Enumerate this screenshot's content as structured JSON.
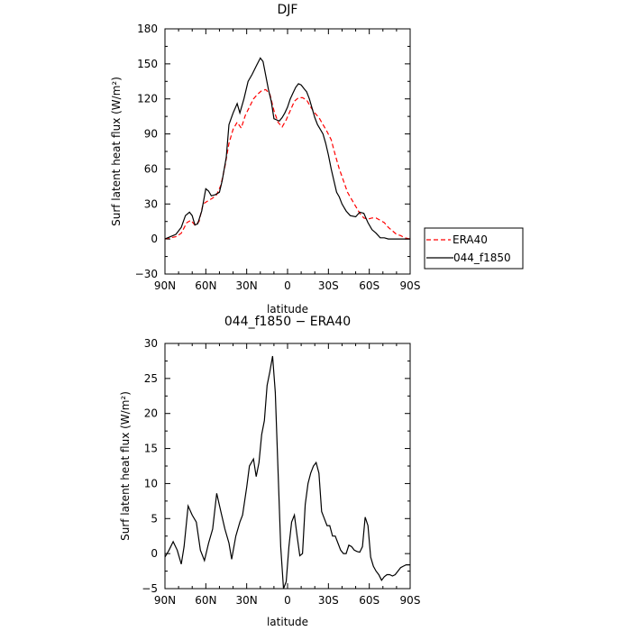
{
  "chart_data": [
    {
      "type": "line",
      "title": "DJF",
      "xlabel": "latitude",
      "ylabel": "Surf latent heat flux (W/m²)",
      "xlim": [
        90,
        -90
      ],
      "ylim": [
        -30,
        180
      ],
      "xticks": [
        90,
        60,
        30,
        0,
        -30,
        -60,
        -90
      ],
      "xtick_labels": [
        "90N",
        "60N",
        "30N",
        "0",
        "30S",
        "60S",
        "90S"
      ],
      "yticks": [
        -30,
        0,
        30,
        60,
        90,
        120,
        150,
        180
      ],
      "ytick_labels": [
        "−30",
        "0",
        "30",
        "60",
        "90",
        "120",
        "150",
        "180"
      ],
      "legend": {
        "placement": "right",
        "entries": [
          "ERA40",
          "044_f1850"
        ]
      },
      "series": [
        {
          "name": "ERA40",
          "color": "#ff0000",
          "dash": "dashed",
          "x": [
            90,
            86,
            82,
            78,
            74,
            71,
            68,
            65,
            62,
            58,
            55,
            52,
            49,
            46,
            43,
            40,
            37,
            34,
            31,
            28,
            25,
            22,
            19,
            16,
            13,
            10,
            7,
            4,
            1,
            -2,
            -5,
            -8,
            -11,
            -14,
            -17,
            -20,
            -23,
            -26,
            -29,
            -32,
            -35,
            -38,
            -41,
            -44,
            -47,
            -50,
            -53,
            -56,
            -59,
            -62,
            -65,
            -68,
            -71,
            -74,
            -77,
            -80,
            -83,
            -86,
            -90
          ],
          "y": [
            0,
            1,
            2,
            5,
            14,
            16,
            12,
            15,
            30,
            33,
            35,
            38,
            46,
            62,
            82,
            94,
            100,
            95,
            106,
            113,
            120,
            124,
            127,
            128,
            124,
            110,
            100,
            96,
            102,
            110,
            118,
            121,
            121,
            119,
            113,
            108,
            104,
            98,
            92,
            85,
            72,
            60,
            50,
            40,
            34,
            28,
            22,
            18,
            17,
            18,
            18,
            16,
            14,
            10,
            7,
            4,
            3,
            1,
            0
          ]
        },
        {
          "name": "044_f1850",
          "color": "#000000",
          "dash": "solid",
          "x": [
            90,
            86,
            82,
            78,
            75,
            72,
            70,
            68,
            66,
            63,
            60,
            58,
            56,
            53,
            50,
            48,
            45,
            43,
            40,
            37,
            35,
            32,
            29,
            26,
            23,
            20,
            18,
            16,
            14,
            12,
            10,
            8,
            6,
            4,
            2,
            0,
            -2,
            -4,
            -6,
            -8,
            -10,
            -12,
            -14,
            -16,
            -18,
            -20,
            -22,
            -24,
            -26,
            -28,
            -30,
            -32,
            -34,
            -36,
            -38,
            -40,
            -43,
            -46,
            -50,
            -53,
            -56,
            -59,
            -62,
            -65,
            -68,
            -71,
            -74,
            -77,
            -80,
            -83,
            -86,
            -90
          ],
          "y": [
            0,
            2,
            4,
            10,
            20,
            23,
            20,
            12,
            13,
            24,
            43,
            41,
            37,
            38,
            40,
            50,
            70,
            98,
            108,
            116,
            108,
            120,
            135,
            141,
            148,
            155,
            152,
            140,
            128,
            118,
            103,
            102,
            101,
            104,
            108,
            113,
            120,
            125,
            130,
            133,
            132,
            129,
            126,
            120,
            112,
            104,
            98,
            94,
            90,
            82,
            72,
            60,
            50,
            40,
            36,
            30,
            24,
            20,
            19,
            23,
            22,
            14,
            8,
            5,
            1,
            1,
            0,
            0,
            0,
            0,
            0,
            0
          ]
        }
      ]
    },
    {
      "type": "line",
      "title": "044_f1850 − ERA40",
      "xlabel": "latitude",
      "ylabel": "Surf latent heat flux (W/m²)",
      "xlim": [
        90,
        -90
      ],
      "ylim": [
        -5,
        30
      ],
      "xticks": [
        90,
        60,
        30,
        0,
        -30,
        -60,
        -90
      ],
      "xtick_labels": [
        "90N",
        "60N",
        "30N",
        "0",
        "30S",
        "60S",
        "90S"
      ],
      "yticks": [
        -5,
        0,
        5,
        10,
        15,
        20,
        25,
        30
      ],
      "ytick_labels": [
        "−5",
        "0",
        "5",
        "10",
        "15",
        "20",
        "25",
        "30"
      ],
      "series": [
        {
          "color": "#000000",
          "dash": "solid",
          "x": [
            90,
            87,
            84,
            81,
            78,
            76,
            73,
            70,
            67,
            64,
            61,
            58,
            55,
            52,
            49,
            46,
            43,
            41,
            38,
            35,
            33,
            30,
            28,
            25,
            23,
            21,
            19,
            17,
            15,
            13,
            11,
            9,
            7,
            5,
            3,
            1,
            -1,
            -3,
            -5,
            -7,
            -9,
            -11,
            -13,
            -15,
            -17,
            -19,
            -21,
            -23,
            -25,
            -27,
            -29,
            -31,
            -33,
            -35,
            -37,
            -39,
            -41,
            -43,
            -45,
            -47,
            -49,
            -51,
            -53,
            -55,
            -57,
            -59,
            -61,
            -63,
            -65,
            -67,
            -69,
            -71,
            -73,
            -75,
            -77,
            -79,
            -81,
            -83,
            -85,
            -87,
            -90
          ],
          "y": [
            -0.5,
            0.5,
            1.7,
            0.5,
            -1.5,
            1,
            6.8,
            5.5,
            4.5,
            0.5,
            -1,
            1.5,
            3.5,
            8.6,
            6,
            3.5,
            1.5,
            -0.8,
            2.5,
            4.5,
            5.5,
            9.5,
            12.5,
            13.5,
            11,
            13,
            17,
            19,
            24,
            26,
            28.2,
            23,
            12,
            1,
            -5,
            -4,
            1,
            4.5,
            5.5,
            2.5,
            -0.3,
            0,
            7,
            10,
            11.5,
            12.5,
            13,
            11.5,
            6,
            5,
            4,
            4,
            2.5,
            2.5,
            1.5,
            0.5,
            0,
            0,
            1.2,
            1,
            0.5,
            0.3,
            0.2,
            1,
            5.2,
            4,
            -0.5,
            -1.8,
            -2.5,
            -3,
            -3.8,
            -3.3,
            -3,
            -3,
            -3.2,
            -3,
            -2.5,
            -2,
            -1.8,
            -1.6,
            -1.6
          ]
        }
      ]
    }
  ]
}
